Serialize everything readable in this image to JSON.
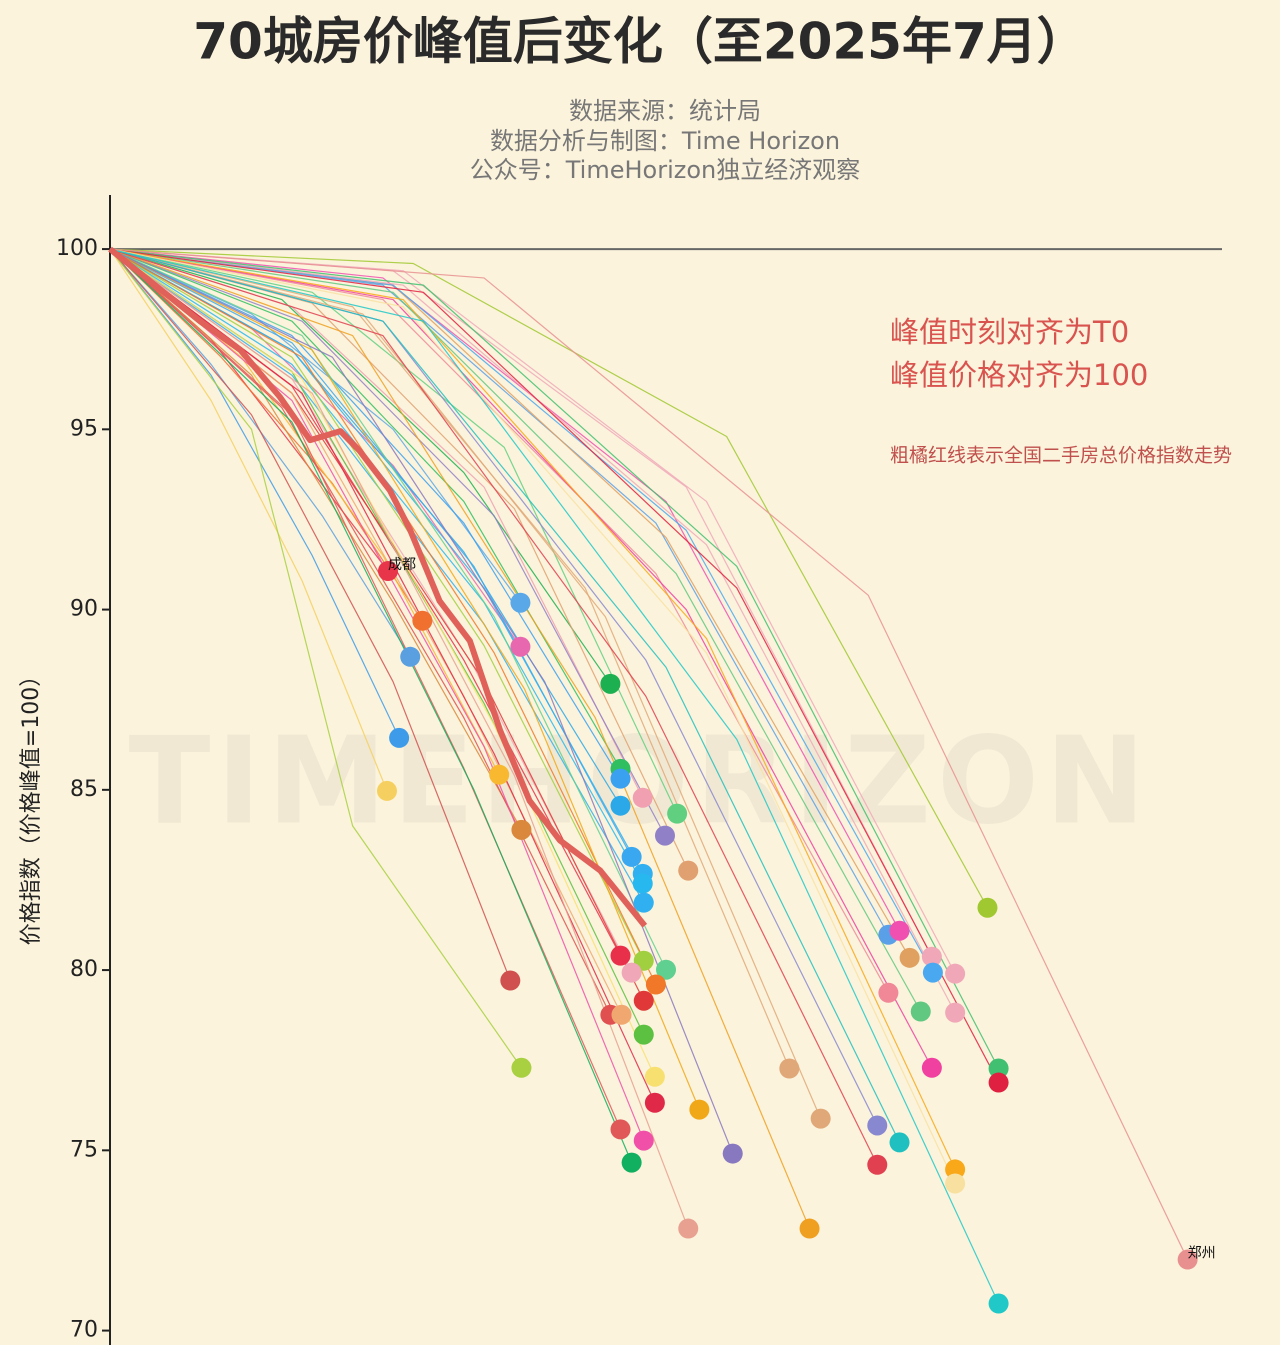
{
  "chart_data": {
    "type": "line",
    "title": "70城房价峰值后变化（至2025年7月）",
    "subtitle": [
      "数据来源：统计局",
      "数据分析与制图：Time Horizon",
      "公众号：TimeHorizon独立经济观察"
    ],
    "ylabel": "价格指数（价格峰值=100）",
    "annotations": [
      "峰值时刻对齐为T0",
      "峰值价格对齐为100",
      "粗橘红线表示全国二手房总价格指数走势"
    ],
    "watermark": "TIMEHORIZON",
    "xlim": [
      0,
      110
    ],
    "ylim": [
      69.6,
      101.5
    ],
    "yticks": [
      70,
      75,
      80,
      85,
      90,
      95,
      100
    ],
    "reference_line": 100,
    "national": {
      "color": "#e0605a",
      "x": [
        0,
        8.9,
        12.9,
        16.8,
        19.8,
        22.8,
        24.7,
        27.7,
        29.7,
        32.6,
        35.6,
        38.6,
        41.5,
        44.5,
        48.5,
        52.9
      ],
      "values": [
        100,
        98.0,
        97.2,
        95.9,
        94.7,
        94.95,
        94.4,
        93.3,
        92.2,
        90.24,
        89.13,
        86.64,
        84.7,
        83.6,
        82.76,
        81.23
      ]
    },
    "series": [
      {
        "label": "成都",
        "color": "#e8354a",
        "x": [
          0,
          10,
          19,
          27.5
        ],
        "values": [
          100,
          97.5,
          94.2,
          91.07
        ]
      },
      {
        "color": "#f07030",
        "x": [
          0,
          11,
          22,
          30.9
        ],
        "values": [
          100,
          97,
          93.5,
          89.69
        ]
      },
      {
        "color": "#5aa0e0",
        "x": [
          0,
          10,
          21,
          29.7
        ],
        "values": [
          100,
          96.8,
          92.6,
          88.69
        ]
      },
      {
        "color": "#3d9be9",
        "x": [
          0,
          10,
          20,
          28.6
        ],
        "values": [
          100,
          96.5,
          91.5,
          86.44
        ]
      },
      {
        "color": "#f5d060",
        "x": [
          0,
          10,
          19,
          27.4
        ],
        "values": [
          100,
          95.8,
          90.8,
          84.97
        ]
      },
      {
        "color": "#5aa8e8",
        "x": [
          0,
          14,
          28,
          40.6
        ],
        "values": [
          100,
          98.2,
          95,
          90.19
        ]
      },
      {
        "color": "#e868b0",
        "x": [
          0,
          14,
          28,
          40.6
        ],
        "values": [
          100,
          97.8,
          94,
          88.97
        ]
      },
      {
        "color": "#1cb050",
        "x": [
          0,
          17,
          35,
          49.5
        ],
        "values": [
          100,
          98.6,
          93.8,
          87.94
        ]
      },
      {
        "color": "#f8b830",
        "x": [
          0,
          13,
          27,
          38.5
        ],
        "values": [
          100,
          97,
          91.5,
          85.42
        ]
      },
      {
        "color": "#d9883c",
        "x": [
          0,
          14,
          28,
          40.7
        ],
        "values": [
          100,
          96.5,
          90.2,
          83.89
        ]
      },
      {
        "color": "#2fbf60",
        "x": [
          0,
          18,
          35,
          50.5
        ],
        "values": [
          100,
          98,
          93,
          85.58
        ]
      },
      {
        "color": "#3aa0f0",
        "x": [
          0,
          18,
          35,
          50.5
        ],
        "values": [
          100,
          97.6,
          92.4,
          85.31
        ]
      },
      {
        "color": "#2aa8e8",
        "x": [
          0,
          18,
          35,
          50.5
        ],
        "values": [
          100,
          97.2,
          91.6,
          84.56
        ]
      },
      {
        "color": "#f0a0b0",
        "x": [
          0,
          18,
          37,
          52.7
        ],
        "values": [
          100,
          98.4,
          93.4,
          84.78
        ]
      },
      {
        "color": "#60d080",
        "x": [
          0,
          20,
          39,
          56.1
        ],
        "values": [
          100,
          98.8,
          94.5,
          84.34
        ]
      },
      {
        "color": "#9080c8",
        "x": [
          0,
          19,
          38,
          54.9
        ],
        "values": [
          100,
          98,
          92.6,
          83.73
        ]
      },
      {
        "color": "#3aa8f0",
        "x": [
          0,
          18,
          36,
          51.6
        ],
        "values": [
          100,
          97.4,
          91.2,
          83.14
        ]
      },
      {
        "color": "#30b0f0",
        "x": [
          0,
          18,
          37,
          52.7
        ],
        "values": [
          100,
          97.2,
          90.6,
          82.67
        ]
      },
      {
        "color": "#28b8f0",
        "x": [
          0,
          18,
          37,
          52.7
        ],
        "values": [
          100,
          96.8,
          90.2,
          82.4
        ]
      },
      {
        "color": "#30b0f0",
        "x": [
          0,
          18,
          37,
          52.8
        ],
        "values": [
          100,
          96.5,
          89.6,
          81.87
        ]
      },
      {
        "color": "#e0a070",
        "x": [
          0,
          20,
          40,
          57.2
        ],
        "values": [
          100,
          98.5,
          92.8,
          82.76
        ]
      },
      {
        "color": "#d05050",
        "x": [
          0,
          14,
          28,
          39.6
        ],
        "values": [
          100,
          95.4,
          88,
          79.71
        ]
      },
      {
        "color": "#a8d040",
        "x": [
          0,
          14,
          24,
          40.7
        ],
        "values": [
          100,
          95,
          84,
          77.29
        ]
      },
      {
        "color": "#e8304a",
        "x": [
          0,
          18,
          35,
          50.5
        ],
        "values": [
          100,
          96.2,
          88.6,
          80.4
        ]
      },
      {
        "color": "#a0d040",
        "x": [
          0,
          18,
          37,
          52.8
        ],
        "values": [
          100,
          97,
          89,
          80.26
        ]
      },
      {
        "color": "#f0a8b8",
        "x": [
          0,
          18,
          36,
          51.6
        ],
        "values": [
          100,
          96.4,
          88.4,
          79.93
        ]
      },
      {
        "color": "#60d090",
        "x": [
          0,
          19,
          38,
          55
        ],
        "values": [
          100,
          97.6,
          89.8,
          80.01
        ]
      },
      {
        "color": "#f07828",
        "x": [
          0,
          19,
          38,
          54
        ],
        "values": [
          100,
          97,
          88.8,
          79.6
        ]
      },
      {
        "color": "#e03838",
        "x": [
          0,
          18,
          37,
          52.8
        ],
        "values": [
          100,
          96,
          88,
          79.15
        ]
      },
      {
        "color": "#e05050",
        "x": [
          0,
          17,
          35,
          49.5
        ],
        "values": [
          100,
          95.6,
          87,
          78.76
        ]
      },
      {
        "color": "#f0a870",
        "x": [
          0,
          18,
          35,
          50.6
        ],
        "values": [
          100,
          96,
          87.6,
          78.76
        ]
      },
      {
        "color": "#5cc040",
        "x": [
          0,
          18,
          37,
          52.8
        ],
        "values": [
          100,
          96.6,
          87.4,
          78.21
        ]
      },
      {
        "color": "#f8e070",
        "x": [
          0,
          19,
          38,
          53.9
        ],
        "values": [
          100,
          96.4,
          86.8,
          77.04
        ]
      },
      {
        "color": "#e02848",
        "x": [
          0,
          19,
          38,
          53.9
        ],
        "values": [
          100,
          96,
          86,
          76.32
        ]
      },
      {
        "color": "#f0a818",
        "x": [
          0,
          20,
          41,
          58.3
        ],
        "values": [
          100,
          97.2,
          87.8,
          76.13
        ]
      },
      {
        "color": "#e05858",
        "x": [
          0,
          18,
          35,
          50.5
        ],
        "values": [
          100,
          95.4,
          85.6,
          75.58
        ]
      },
      {
        "color": "#f050a8",
        "x": [
          0,
          18,
          37,
          52.8
        ],
        "values": [
          100,
          95.8,
          86.2,
          75.27
        ]
      },
      {
        "color": "#10b060",
        "x": [
          0,
          18,
          36,
          51.6
        ],
        "values": [
          100,
          95.2,
          85,
          74.66
        ]
      },
      {
        "color": "#e8a090",
        "x": [
          0,
          20,
          40,
          57.2
        ],
        "values": [
          100,
          96,
          85.4,
          72.83
        ]
      },
      {
        "color": "#8878c0",
        "x": [
          0,
          22,
          43,
          61.6
        ],
        "values": [
          100,
          97,
          88,
          74.91
        ]
      },
      {
        "color": "#e0a878",
        "x": [
          0,
          24,
          47,
          67.2
        ],
        "values": [
          100,
          98.4,
          90.6,
          77.27
        ]
      },
      {
        "color": "#e0a878",
        "x": [
          0,
          25,
          49,
          70.3
        ],
        "values": [
          100,
          98.2,
          89.8,
          75.88
        ]
      },
      {
        "color": "#f0a020",
        "x": [
          0,
          24,
          48,
          69.2
        ],
        "values": [
          100,
          97.6,
          87,
          72.83
        ]
      },
      {
        "color": "#5aa0e8",
        "x": [
          0,
          27,
          54,
          77
        ],
        "values": [
          100,
          99,
          92.4,
          80.98
        ]
      },
      {
        "color": "#f050b0",
        "x": [
          0,
          27,
          55,
          78.1
        ],
        "values": [
          100,
          99.2,
          93,
          81.09
        ]
      },
      {
        "color": "#e0a060",
        "x": [
          0,
          28,
          55,
          79.1
        ],
        "values": [
          100,
          99,
          92,
          80.34
        ]
      },
      {
        "color": "#f0a8b8",
        "x": [
          0,
          28,
          57,
          81.3
        ],
        "values": [
          100,
          99.4,
          93.4,
          80.37
        ]
      },
      {
        "color": "#4aa8f0",
        "x": [
          0,
          28,
          57,
          81.4
        ],
        "values": [
          100,
          99,
          92.2,
          79.93
        ]
      },
      {
        "color": "#f0a8b8",
        "x": [
          0,
          29,
          59,
          83.6
        ],
        "values": [
          100,
          99.4,
          93,
          79.9
        ]
      },
      {
        "color": "#f08898",
        "x": [
          0,
          27,
          54,
          77
        ],
        "values": [
          100,
          98.6,
          91,
          79.37
        ]
      },
      {
        "color": "#60c880",
        "x": [
          0,
          28,
          56,
          80.2
        ],
        "values": [
          100,
          98.8,
          91,
          78.85
        ]
      },
      {
        "color": "#f0a8b8",
        "x": [
          0,
          29,
          59,
          83.6
        ],
        "values": [
          100,
          99,
          91.8,
          78.82
        ]
      },
      {
        "color": "#f040a0",
        "x": [
          0,
          28,
          57,
          81.3
        ],
        "values": [
          100,
          98.6,
          90,
          77.29
        ]
      },
      {
        "color": "#a0c830",
        "x": [
          0,
          30,
          61,
          86.8
        ],
        "values": [
          100,
          99.6,
          94.8,
          81.73
        ]
      },
      {
        "color": "#40c070",
        "x": [
          0,
          31,
          62,
          87.9
        ],
        "values": [
          100,
          99,
          91.2,
          77.27
        ]
      },
      {
        "color": "#e02040",
        "x": [
          0,
          31,
          62,
          87.9
        ],
        "values": [
          100,
          98.8,
          90.6,
          76.88
        ]
      },
      {
        "color": "#8888d0",
        "x": [
          0,
          27,
          53,
          75.9
        ],
        "values": [
          100,
          98,
          88.6,
          75.69
        ]
      },
      {
        "color": "#e04050",
        "x": [
          0,
          27,
          53,
          75.9
        ],
        "values": [
          100,
          97.6,
          87.6,
          74.6
        ]
      },
      {
        "color": "#20c0c0",
        "x": [
          0,
          27,
          55,
          78.1
        ],
        "values": [
          100,
          98,
          88.4,
          75.22
        ]
      },
      {
        "color": "#f8a818",
        "x": [
          0,
          29,
          59,
          83.6
        ],
        "values": [
          100,
          98.6,
          89.2,
          74.47
        ]
      },
      {
        "color": "#f8e0a0",
        "x": [
          0,
          29,
          59,
          83.6
        ],
        "values": [
          100,
          98.4,
          88.8,
          74.08
        ]
      },
      {
        "color": "#20c8c8",
        "x": [
          0,
          31,
          62,
          87.9
        ],
        "values": [
          100,
          98,
          86.4,
          70.75
        ]
      },
      {
        "label": "郑州",
        "color": "#e89090",
        "x": [
          0,
          37,
          75,
          106.6
        ],
        "values": [
          100,
          99.2,
          90.4,
          71.97
        ]
      }
    ]
  }
}
